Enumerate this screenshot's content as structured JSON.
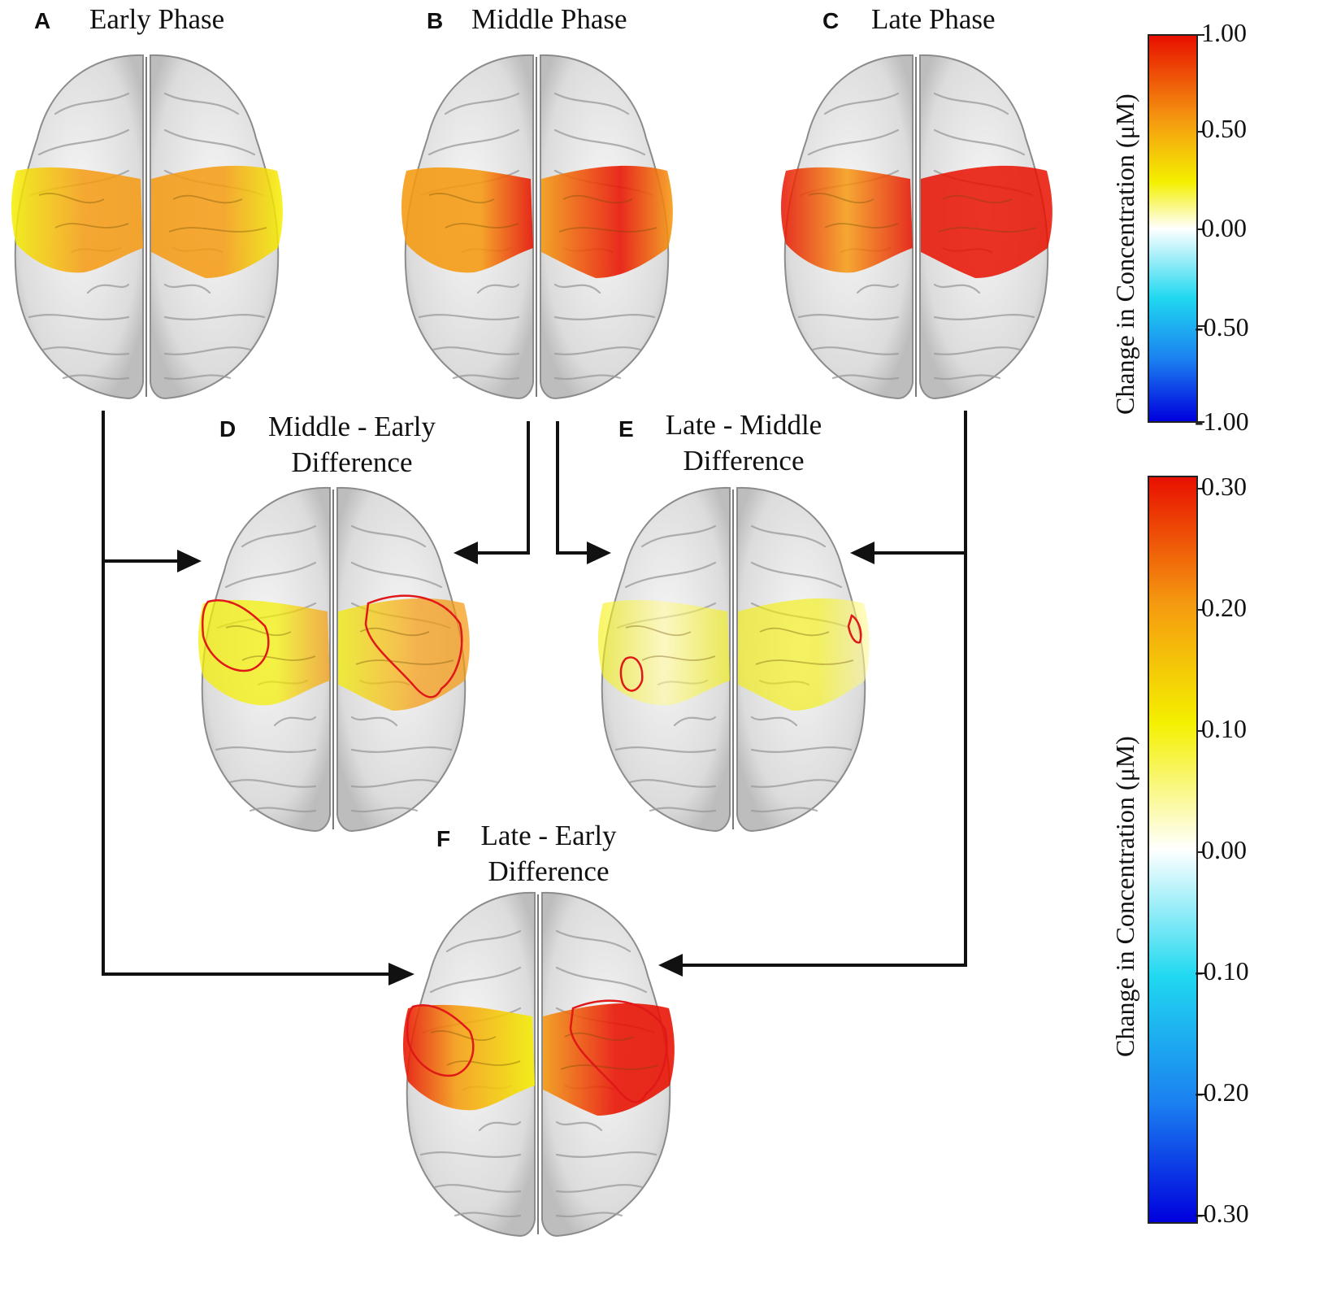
{
  "panels": [
    {
      "letter": "A",
      "title_lines": [
        "Early Phase"
      ],
      "fill": "early"
    },
    {
      "letter": "B",
      "title_lines": [
        "Middle Phase"
      ],
      "fill": "middle"
    },
    {
      "letter": "C",
      "title_lines": [
        "Late Phase"
      ],
      "fill": "late"
    },
    {
      "letter": "D",
      "title_lines": [
        "Middle - Early",
        "Difference"
      ],
      "fill": "diffME"
    },
    {
      "letter": "E",
      "title_lines": [
        "Late - Middle",
        "Difference"
      ],
      "fill": "diffLM"
    },
    {
      "letter": "F",
      "title_lines": [
        "Late - Early",
        "Difference"
      ],
      "fill": "diffLE"
    }
  ],
  "colorbars": [
    {
      "label": "Change in Concentration (μM)",
      "ticks": [
        "1.00",
        "0.50",
        "0.00",
        "-0.50",
        "-1.00"
      ]
    },
    {
      "label": "Change in Concentration (μM)",
      "ticks": [
        "0.30",
        "0.20",
        "0.10",
        "0.00",
        "-0.10",
        "-0.20",
        "-0.30"
      ]
    }
  ],
  "colors": {
    "brain": "#e6e6e6",
    "sulcus": "#9a9a9a",
    "outline": "#8c8c8c",
    "cold": "#0000dd",
    "cyan": "#20d8f0",
    "white": "#ffffff",
    "yellow": "#f4f000",
    "orange": "#f59a10",
    "red": "#e81000",
    "roi": "#e01818",
    "arrow": "#111111"
  }
}
